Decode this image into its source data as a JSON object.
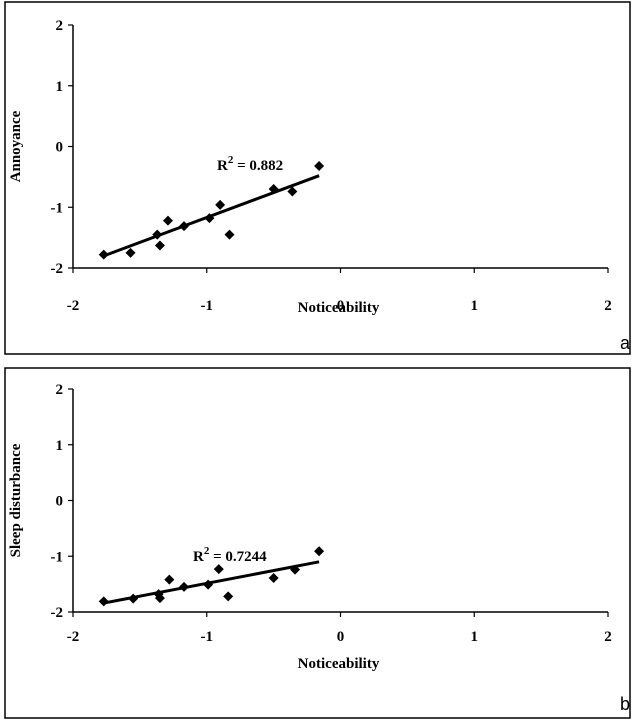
{
  "chart_data": [
    {
      "type": "scatter",
      "panel_label": "a",
      "xlabel": "Noticeability",
      "ylabel": "Annoyance",
      "xlim": [
        -2,
        2
      ],
      "ylim": [
        -2,
        2
      ],
      "xticks": [
        "-2",
        "-1",
        "0",
        "1",
        "2"
      ],
      "yticks": [
        "-2",
        "-1",
        "0",
        "1",
        "2"
      ],
      "annotation": {
        "prefix": "R",
        "sup": "2",
        "suffix": " = 0.882"
      },
      "points": [
        {
          "x": -1.77,
          "y": -1.78
        },
        {
          "x": -1.57,
          "y": -1.75
        },
        {
          "x": -1.37,
          "y": -1.45
        },
        {
          "x": -1.35,
          "y": -1.63
        },
        {
          "x": -1.29,
          "y": -1.22
        },
        {
          "x": -1.17,
          "y": -1.31
        },
        {
          "x": -0.98,
          "y": -1.18
        },
        {
          "x": -0.9,
          "y": -0.96
        },
        {
          "x": -0.83,
          "y": -1.45
        },
        {
          "x": -0.5,
          "y": -0.7
        },
        {
          "x": -0.36,
          "y": -0.74
        },
        {
          "x": -0.16,
          "y": -0.32
        }
      ],
      "trendline": {
        "x": [
          -1.77,
          -0.16
        ],
        "y": [
          -1.8,
          -0.48
        ]
      }
    },
    {
      "type": "scatter",
      "panel_label": "b",
      "xlabel": "Noticeability",
      "ylabel": "Sleep disturbance",
      "xlim": [
        -2,
        2
      ],
      "ylim": [
        -2,
        2
      ],
      "xticks": [
        "-2",
        "-1",
        "0",
        "1",
        "2"
      ],
      "yticks": [
        "-2",
        "-1",
        "0",
        "1",
        "2"
      ],
      "annotation": {
        "prefix": "R",
        "sup": "2",
        "suffix": " = 0.7244"
      },
      "points": [
        {
          "x": -1.77,
          "y": -1.81
        },
        {
          "x": -1.55,
          "y": -1.76
        },
        {
          "x": -1.36,
          "y": -1.68
        },
        {
          "x": -1.35,
          "y": -1.75
        },
        {
          "x": -1.28,
          "y": -1.42
        },
        {
          "x": -1.17,
          "y": -1.55
        },
        {
          "x": -0.99,
          "y": -1.51
        },
        {
          "x": -0.91,
          "y": -1.23
        },
        {
          "x": -0.84,
          "y": -1.72
        },
        {
          "x": -0.5,
          "y": -1.39
        },
        {
          "x": -0.34,
          "y": -1.24
        },
        {
          "x": -0.16,
          "y": -0.91
        }
      ],
      "trendline": {
        "x": [
          -1.77,
          -0.16
        ],
        "y": [
          -1.84,
          -1.1
        ]
      }
    }
  ]
}
